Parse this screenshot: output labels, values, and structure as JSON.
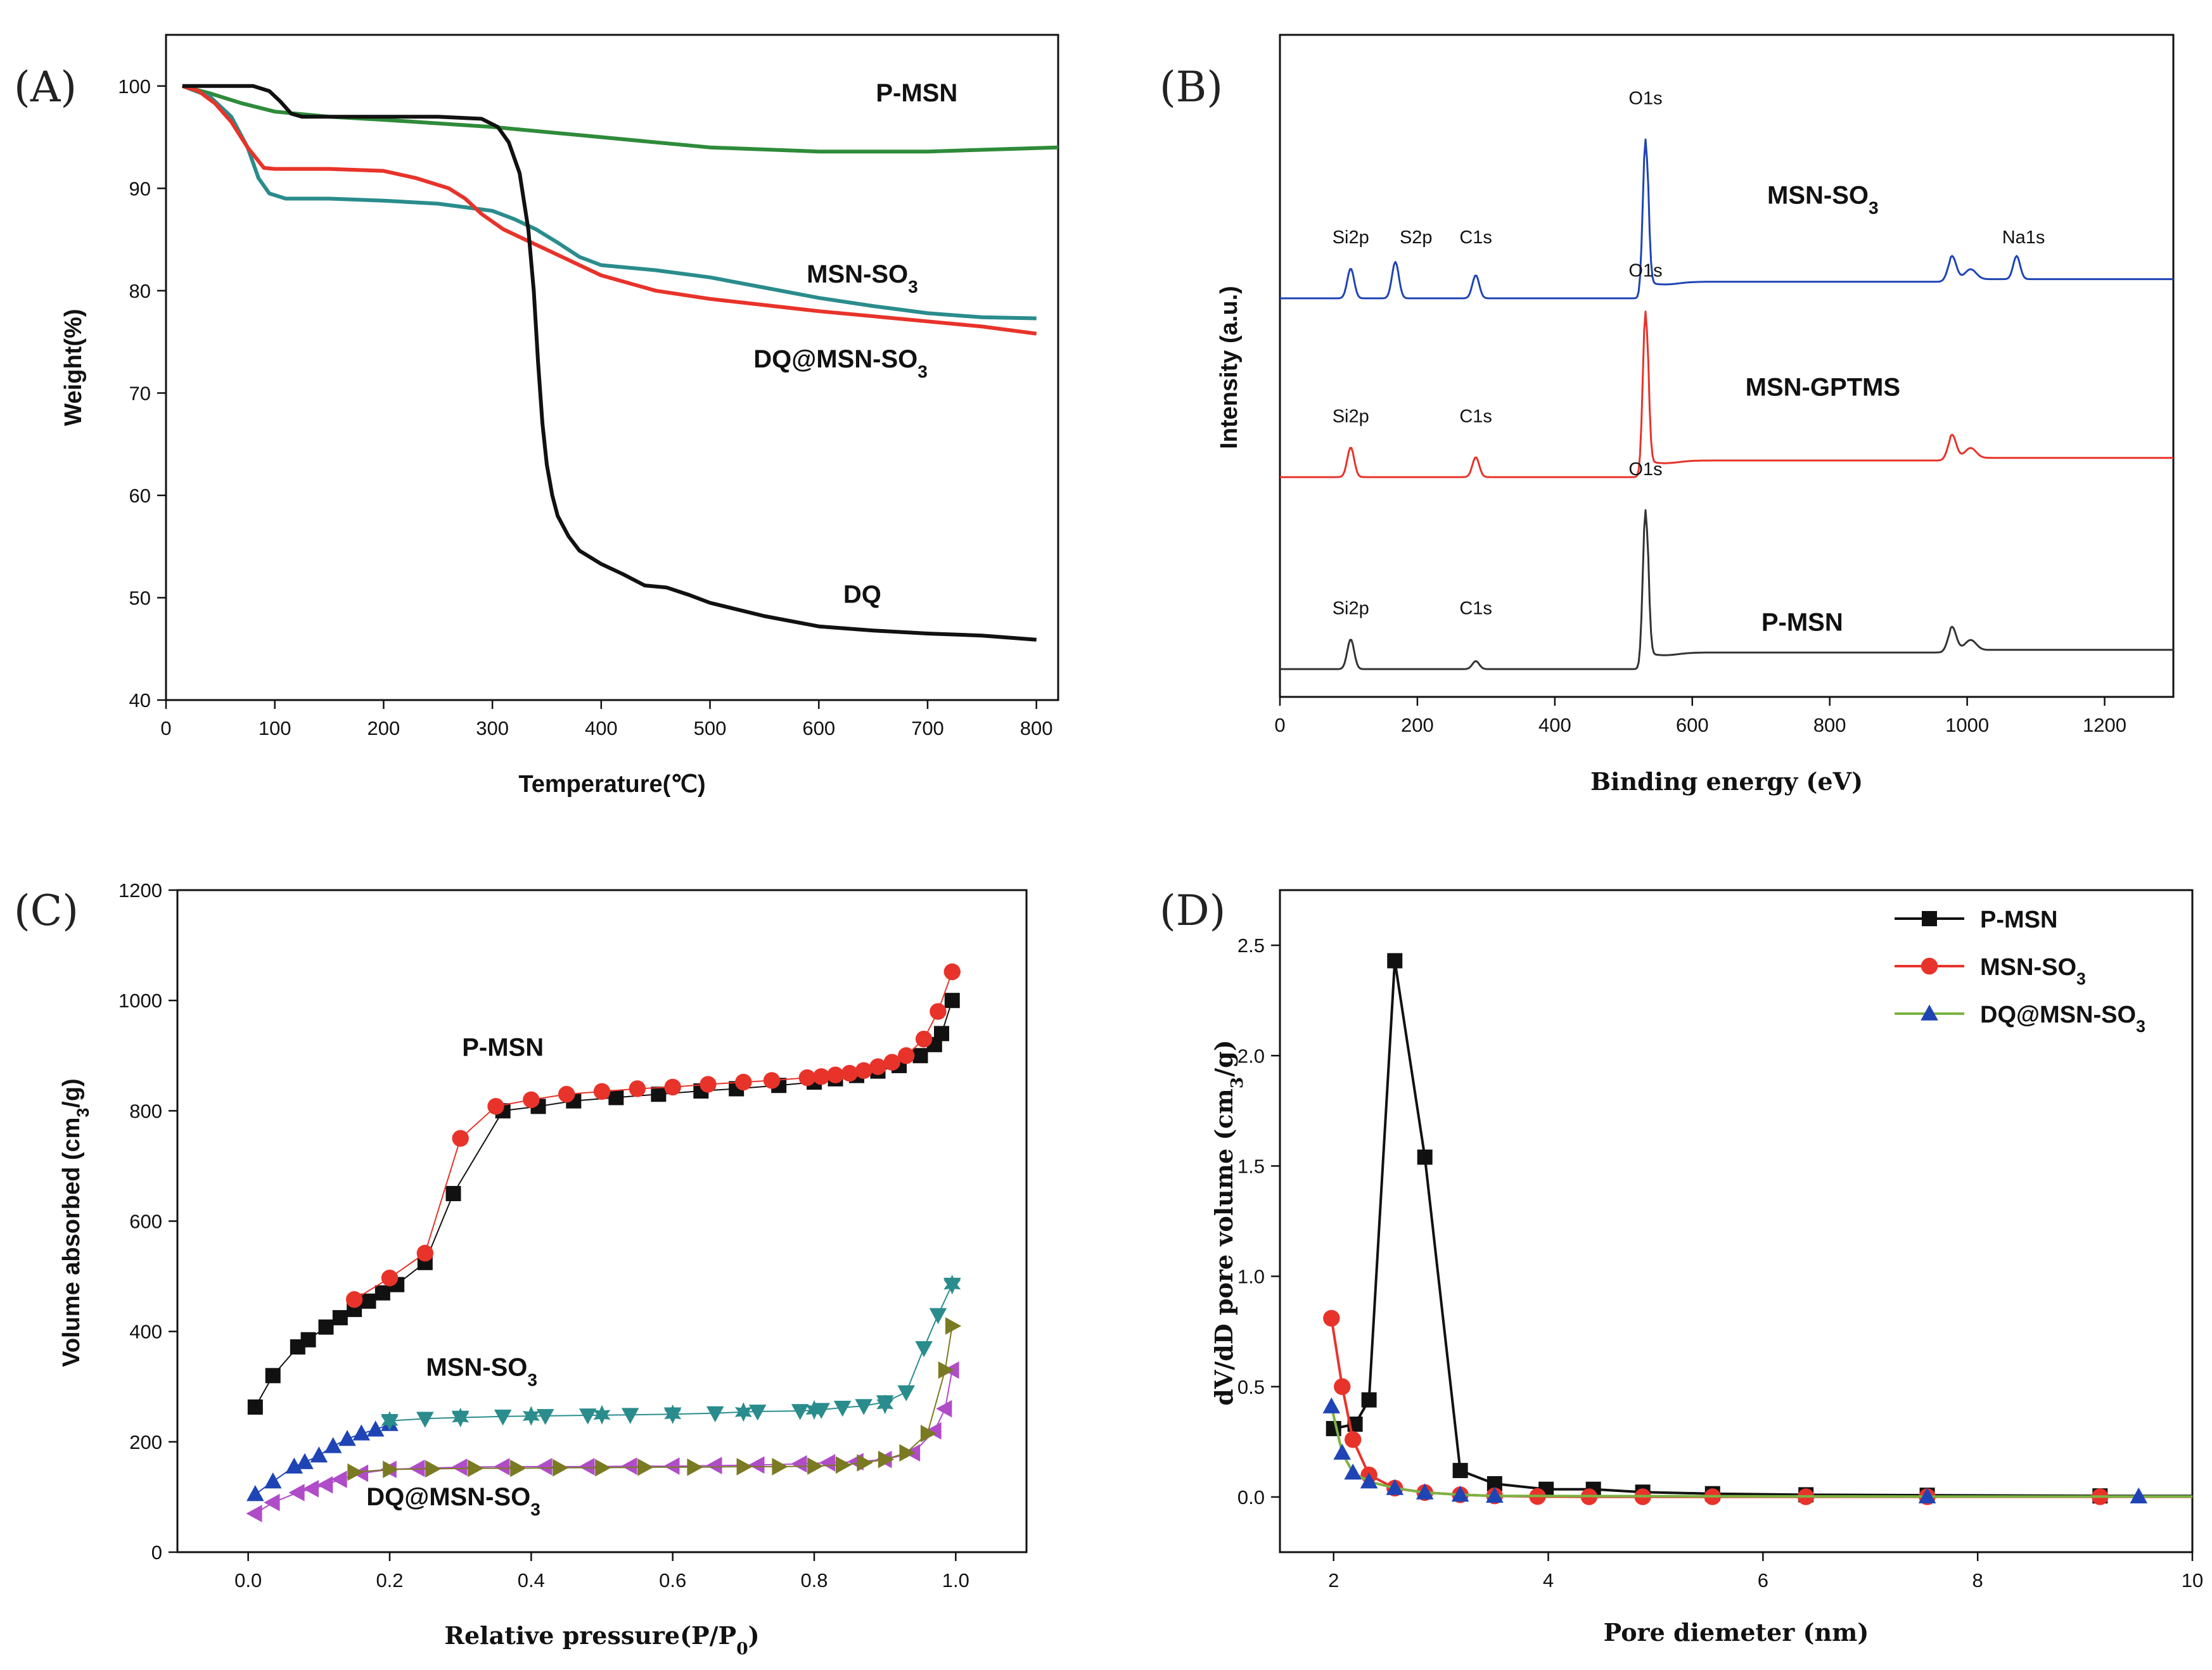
{
  "figure": {
    "description_labels": [
      "(A)",
      "(B)",
      "(C)",
      "(D)"
    ]
  },
  "chart_data": [
    {
      "type": "line",
      "panel_label": "(A)",
      "title": "",
      "xlabel": "Temperature(℃)",
      "ylabel": "Weight(%)",
      "xlim": [
        0,
        820
      ],
      "ylim": [
        40,
        105
      ],
      "xticks": [
        0,
        100,
        200,
        300,
        400,
        500,
        600,
        700,
        800
      ],
      "yticks": [
        40,
        50,
        60,
        70,
        80,
        90,
        100
      ],
      "grid": false,
      "series": [
        {
          "name": "P-MSN",
          "label_parts": [
            "P-MSN"
          ],
          "color": "#2e8b3a",
          "x": [
            15,
            40,
            70,
            100,
            150,
            200,
            300,
            400,
            500,
            600,
            700,
            820
          ],
          "y": [
            100,
            99.3,
            98.3,
            97.5,
            97.0,
            96.7,
            96.0,
            95.0,
            94.0,
            93.6,
            93.6,
            94.0
          ]
        },
        {
          "name": "MSN-SO3",
          "label_parts": [
            "MSN-SO",
            "3"
          ],
          "color": "#2a8c8c",
          "x": [
            15,
            40,
            60,
            75,
            85,
            95,
            110,
            150,
            200,
            250,
            300,
            320,
            340,
            360,
            380,
            400,
            450,
            500,
            550,
            600,
            650,
            700,
            750,
            800
          ],
          "y": [
            100,
            99.0,
            97.0,
            94.0,
            91.0,
            89.5,
            89.0,
            89.0,
            88.8,
            88.5,
            87.8,
            87.0,
            86.0,
            84.7,
            83.3,
            82.5,
            82.0,
            81.3,
            80.3,
            79.3,
            78.5,
            77.8,
            77.4,
            77.3
          ]
        },
        {
          "name": "DQ@MSN-SO3",
          "label_parts": [
            "DQ@MSN-SO",
            "3"
          ],
          "color": "#e8332a",
          "x": [
            15,
            30,
            45,
            60,
            75,
            90,
            100,
            150,
            200,
            230,
            260,
            275,
            290,
            310,
            330,
            350,
            380,
            400,
            450,
            500,
            550,
            600,
            650,
            700,
            750,
            800
          ],
          "y": [
            100,
            99.5,
            98.3,
            96.5,
            94.0,
            92.0,
            91.9,
            91.9,
            91.7,
            91.0,
            90.0,
            89.0,
            87.5,
            86.0,
            85.0,
            84.0,
            82.5,
            81.5,
            80.0,
            79.2,
            78.6,
            78.0,
            77.5,
            77.0,
            76.5,
            75.8
          ]
        },
        {
          "name": "DQ",
          "label_parts": [
            "DQ"
          ],
          "color": "#111111",
          "x": [
            15,
            50,
            80,
            95,
            105,
            115,
            125,
            150,
            200,
            250,
            290,
            305,
            315,
            325,
            333,
            338,
            342,
            346,
            350,
            355,
            360,
            370,
            380,
            400,
            420,
            440,
            460,
            480,
            500,
            550,
            600,
            650,
            700,
            750,
            800
          ],
          "y": [
            100,
            100,
            100,
            99.5,
            98.5,
            97.3,
            97.0,
            97.0,
            97.0,
            97.0,
            96.8,
            96.0,
            94.5,
            91.5,
            86.0,
            80.0,
            73.0,
            67.0,
            63.0,
            60.0,
            58.0,
            56.0,
            54.6,
            53.3,
            52.3,
            51.2,
            51.0,
            50.3,
            49.5,
            48.2,
            47.2,
            46.8,
            46.5,
            46.3,
            45.9
          ]
        }
      ],
      "annotations": [
        {
          "text_parts": [
            "P-MSN"
          ],
          "series": "P-MSN",
          "at": [
            690,
            98.5
          ]
        },
        {
          "text_parts": [
            "MSN-SO",
            "3"
          ],
          "series": "MSN-SO3",
          "at": [
            640,
            80.8
          ]
        },
        {
          "text_parts": [
            "DQ@MSN-SO",
            "3"
          ],
          "series": "DQ@MSN-SO3",
          "at": [
            620,
            72.5
          ]
        },
        {
          "text_parts": [
            "DQ"
          ],
          "series": "DQ",
          "at": [
            640,
            49.5
          ]
        }
      ]
    },
    {
      "type": "line",
      "panel_label": "(B)",
      "title": "",
      "xlabel": "Binding energy (eV)",
      "ylabel": "Intensity (a.u.)",
      "xlim": [
        0,
        1300
      ],
      "ylim": [
        0,
        10
      ],
      "xticks": [
        0,
        200,
        400,
        600,
        800,
        1000,
        1200
      ],
      "yticks": [],
      "grid": false,
      "series": [
        {
          "name": "MSN-SO3",
          "label_parts": [
            "MSN-SO",
            "3"
          ],
          "color": "#1f44b5",
          "offset": 6.0,
          "peaks": [
            {
              "label": "Si2p",
              "x": 103,
              "height": 0.45
            },
            {
              "label": "S2p",
              "x": 168,
              "height": 0.55
            },
            {
              "label": "C1s",
              "x": 285,
              "height": 0.35
            },
            {
              "label": "O1s",
              "x": 532,
              "height": 2.4
            },
            {
              "label": "Na1s",
              "x": 1072,
              "height": 0.35
            }
          ]
        },
        {
          "name": "MSN-GPTMS",
          "label_parts": [
            "MSN-GPTMS"
          ],
          "color": "#e8332a",
          "offset": 3.3,
          "peaks": [
            {
              "label": "Si2p",
              "x": 103,
              "height": 0.45
            },
            {
              "label": "C1s",
              "x": 285,
              "height": 0.3
            },
            {
              "label": "O1s",
              "x": 532,
              "height": 2.5
            }
          ]
        },
        {
          "name": "P-MSN",
          "label_parts": [
            "P-MSN"
          ],
          "color": "#333333",
          "offset": 0.4,
          "peaks": [
            {
              "label": "Si2p",
              "x": 103,
              "height": 0.45
            },
            {
              "label": "C1s",
              "x": 285,
              "height": 0.12
            },
            {
              "label": "O1s",
              "x": 532,
              "height": 2.4
            }
          ]
        }
      ]
    },
    {
      "type": "scatter",
      "panel_label": "(C)",
      "title": "",
      "xlabel": "Relative pressure(P/P0)",
      "ylabel": "Volume absorbed (cm3/g)",
      "xlabel_parts": [
        "Relative pressure(P/P",
        "0",
        ")"
      ],
      "ylabel_parts": [
        "Volume absorbed (cm",
        "3",
        "/g)"
      ],
      "xlim": [
        -0.1,
        1.1
      ],
      "ylim": [
        0,
        1200
      ],
      "xticks": [
        0.0,
        0.2,
        0.4,
        0.6,
        0.8,
        1.0
      ],
      "xtick_labels": [
        "0.0",
        "0.2",
        "0.4",
        "0.6",
        "0.8",
        "1.0"
      ],
      "yticks": [
        0,
        200,
        400,
        600,
        800,
        1000,
        1200
      ],
      "grid": false,
      "series": [
        {
          "name": "P-MSN adsorption",
          "marker": "square",
          "color": "#111111",
          "x": [
            0.01,
            0.035,
            0.07,
            0.085,
            0.11,
            0.13,
            0.15,
            0.17,
            0.19,
            0.21,
            0.25,
            0.29,
            0.36,
            0.41,
            0.46,
            0.52,
            0.58,
            0.64,
            0.69,
            0.75,
            0.8,
            0.83,
            0.86,
            0.89,
            0.92,
            0.95,
            0.97,
            0.98,
            0.995
          ],
          "y": [
            263,
            320,
            372,
            385,
            408,
            425,
            440,
            455,
            470,
            485,
            525,
            650,
            800,
            808,
            818,
            824,
            830,
            836,
            840,
            846,
            852,
            858,
            864,
            872,
            882,
            900,
            920,
            940,
            1000
          ]
        },
        {
          "name": "P-MSN desorption",
          "marker": "circle",
          "color": "#e8332a",
          "x": [
            0.995,
            0.975,
            0.955,
            0.93,
            0.91,
            0.89,
            0.87,
            0.85,
            0.83,
            0.81,
            0.79,
            0.74,
            0.7,
            0.65,
            0.6,
            0.55,
            0.5,
            0.45,
            0.4,
            0.35,
            0.3,
            0.25,
            0.2,
            0.15
          ],
          "y": [
            1052,
            980,
            930,
            900,
            888,
            880,
            873,
            868,
            865,
            862,
            860,
            855,
            852,
            848,
            843,
            840,
            835,
            830,
            820,
            808,
            750,
            542,
            497,
            458
          ]
        },
        {
          "name": "MSN-SO3 adsorption",
          "marker": "triangle-up",
          "color": "#1f44b5",
          "x": [
            0.01,
            0.035,
            0.065,
            0.08,
            0.1,
            0.12,
            0.14,
            0.16,
            0.18,
            0.2
          ],
          "y": [
            105,
            128,
            155,
            163,
            175,
            192,
            205,
            215,
            222,
            232
          ]
        },
        {
          "name": "MSN-SO3 desorption",
          "marker": "triangle-down",
          "color": "#2a8c8c",
          "x": [
            0.995,
            0.975,
            0.955,
            0.93,
            0.9,
            0.87,
            0.84,
            0.81,
            0.78,
            0.72,
            0.66,
            0.6,
            0.54,
            0.48,
            0.42,
            0.36,
            0.3,
            0.25,
            0.2
          ],
          "y": [
            485,
            430,
            370,
            290,
            272,
            265,
            262,
            258,
            256,
            255,
            252,
            250,
            249,
            248,
            247,
            246,
            244,
            242,
            238
          ]
        },
        {
          "name": "MSN-SO3 star",
          "marker": "star",
          "color": "#2a8c8c",
          "x": [
            0.995,
            0.2,
            0.3,
            0.4,
            0.5,
            0.6,
            0.7,
            0.8,
            0.9
          ],
          "y": [
            485,
            238,
            244,
            247,
            249,
            250,
            254,
            258,
            268
          ]
        },
        {
          "name": "DQ@MSN-SO3 adsorption",
          "marker": "triangle-left",
          "color": "#b04cc8",
          "x": [
            0.01,
            0.035,
            0.07,
            0.09,
            0.11,
            0.13,
            0.16,
            0.2,
            0.24,
            0.3,
            0.36,
            0.42,
            0.48,
            0.54,
            0.6,
            0.66,
            0.72,
            0.78,
            0.82,
            0.86,
            0.9,
            0.94,
            0.97,
            0.985,
            0.995
          ],
          "y": [
            70,
            90,
            108,
            115,
            122,
            132,
            143,
            150,
            152,
            154,
            155,
            155,
            155,
            156,
            156,
            157,
            158,
            160,
            162,
            164,
            168,
            180,
            220,
            260,
            330
          ]
        },
        {
          "name": "DQ@MSN-SO3 desorption",
          "marker": "triangle-right",
          "color": "#7a7a22",
          "x": [
            0.995,
            0.985,
            0.96,
            0.93,
            0.9,
            0.87,
            0.84,
            0.8,
            0.75,
            0.7,
            0.63,
            0.56,
            0.5,
            0.44,
            0.38,
            0.32,
            0.26,
            0.2,
            0.15
          ],
          "y": [
            410,
            330,
            215,
            180,
            168,
            162,
            158,
            156,
            155,
            155,
            154,
            154,
            153,
            153,
            152,
            152,
            151,
            150,
            145
          ]
        }
      ],
      "annotations": [
        {
          "text_parts": [
            "P-MSN"
          ],
          "at": [
            0.36,
            900
          ]
        },
        {
          "text_parts": [
            "MSN-SO",
            "3"
          ],
          "at": [
            0.33,
            320
          ]
        },
        {
          "text_parts": [
            "DQ@MSN-SO",
            "3"
          ],
          "at": [
            0.29,
            85
          ]
        }
      ]
    },
    {
      "type": "line",
      "panel_label": "(D)",
      "title": "",
      "xlabel": "Pore diemeter (nm)",
      "ylabel": "dV/dD pore volume (cm3/g)",
      "ylabel_parts": [
        "dV/dD pore volume (cm",
        "3",
        "/g)"
      ],
      "xlim": [
        1.5,
        10
      ],
      "ylim": [
        -0.25,
        2.75
      ],
      "xticks": [
        2,
        4,
        6,
        8,
        10
      ],
      "yticks": [
        0.0,
        0.5,
        1.0,
        1.5,
        2.0,
        2.5
      ],
      "ytick_labels": [
        "0.0",
        "0.5",
        "1.0",
        "1.5",
        "2.0",
        "2.5"
      ],
      "grid": false,
      "legend": "top-right",
      "series": [
        {
          "name": "P-MSN",
          "legend_parts": [
            "P-MSN"
          ],
          "marker": "square",
          "color": "#111111",
          "x": [
            2.0,
            2.2,
            2.33,
            2.57,
            2.85,
            3.18,
            3.5,
            3.98,
            4.42,
            4.88,
            5.53,
            6.4,
            7.53,
            9.14,
            10.0
          ],
          "y": [
            0.31,
            0.33,
            0.44,
            2.43,
            1.54,
            0.12,
            0.06,
            0.035,
            0.035,
            0.022,
            0.015,
            0.01,
            0.008,
            0.005,
            0.005
          ]
        },
        {
          "name": "MSN-SO3",
          "legend_parts": [
            "MSN-SO",
            "3"
          ],
          "marker": "circle",
          "color": "#e8332a",
          "x": [
            1.98,
            2.08,
            2.18,
            2.33,
            2.57,
            2.85,
            3.18,
            3.5,
            3.9,
            4.38,
            4.88,
            5.53,
            6.4,
            7.53,
            9.14,
            10.0
          ],
          "y": [
            0.81,
            0.5,
            0.26,
            0.1,
            0.04,
            0.02,
            0.01,
            0.005,
            0.002,
            0.001,
            0.001,
            0.001,
            0.001,
            0.001,
            0.001,
            0.001
          ]
        },
        {
          "name": "DQ@MSN-SO3",
          "legend_parts": [
            "DQ@MSN-SO",
            "3"
          ],
          "marker": "triangle-up",
          "color": "#1f44b5",
          "line_color": "#7cb342",
          "x": [
            1.98,
            2.08,
            2.18,
            2.33,
            2.57,
            2.85,
            3.18,
            3.5,
            7.53,
            9.5,
            10.0
          ],
          "y": [
            0.41,
            0.2,
            0.11,
            0.07,
            0.04,
            0.02,
            0.01,
            0.005,
            0.002,
            0.002,
            0.002
          ]
        }
      ]
    }
  ]
}
